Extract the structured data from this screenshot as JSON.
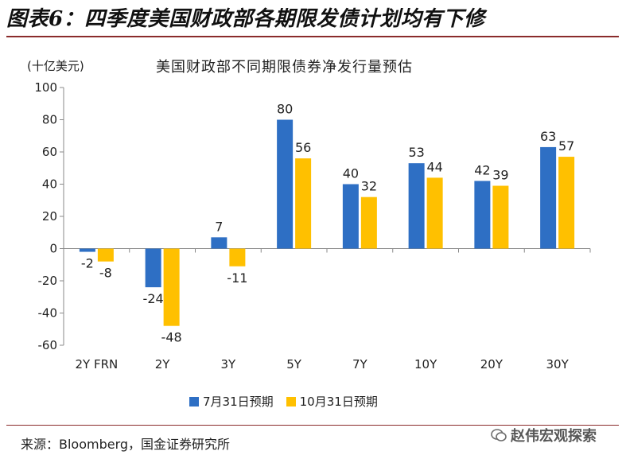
{
  "figure": {
    "title": "图表6：四季度美国财政部各期限发债计划均有下修",
    "source": "来源：Bloomberg，国金证券研究所",
    "watermark": "赵伟宏观探索"
  },
  "chart_data": {
    "type": "bar",
    "title": "美国财政部不同期限债券净发行量预估",
    "unit_label": "(十亿美元)",
    "xlabel": "",
    "ylabel": "",
    "categories": [
      "2Y FRN",
      "2Y",
      "3Y",
      "5Y",
      "7Y",
      "10Y",
      "20Y",
      "30Y"
    ],
    "series": [
      {
        "name": "7月31日预期",
        "color": "#2e6fc4",
        "values": [
          -2,
          -24,
          7,
          80,
          40,
          53,
          42,
          63
        ]
      },
      {
        "name": "10月31日预期",
        "color": "#ffc000",
        "values": [
          -8,
          -48,
          -11,
          56,
          32,
          44,
          39,
          57
        ]
      }
    ],
    "ylim": [
      -60,
      100
    ],
    "yticks": [
      -60,
      -40,
      -20,
      0,
      20,
      40,
      60,
      80,
      100
    ],
    "ytick_labels": [
      "-60",
      "-40",
      "-20",
      "0",
      "20",
      "40",
      "60",
      "80",
      "100"
    ],
    "data_labels": [
      [
        "-2",
        "-24",
        "7",
        "80",
        "40",
        "53",
        "42",
        "63"
      ],
      [
        "-8",
        "-48",
        "-11",
        "56",
        "32",
        "44",
        "39",
        "57"
      ]
    ],
    "grid": false,
    "legend_position": "bottom"
  }
}
